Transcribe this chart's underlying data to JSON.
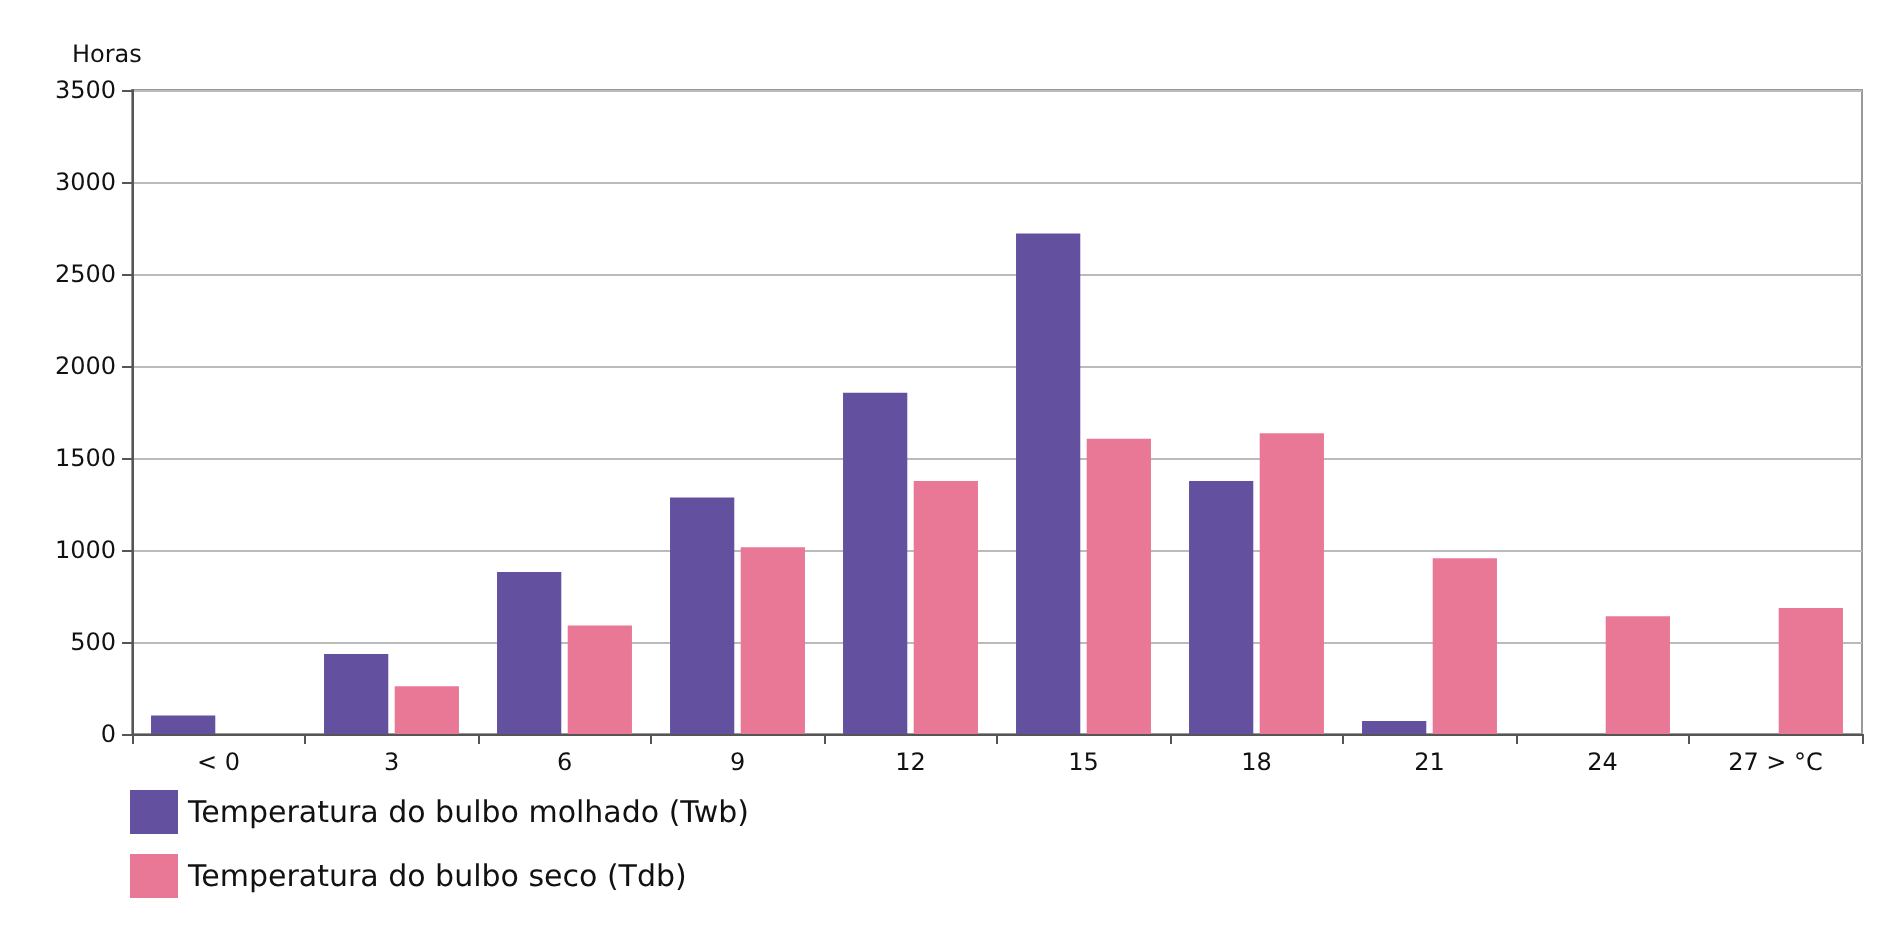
{
  "chart_data": {
    "type": "bar",
    "ylabel": "Horas",
    "categories": [
      "< 0",
      "3",
      "6",
      "9",
      "12",
      "15",
      "18",
      "21",
      "24",
      "27 > °C"
    ],
    "series": [
      {
        "name": "Temperatura do bulbo molhado (Twb)",
        "color": "#6351a0",
        "values": [
          100,
          435,
          880,
          1285,
          1855,
          2720,
          1375,
          70,
          0,
          0
        ]
      },
      {
        "name": "Temperatura do bulbo seco (Tdb)",
        "color": "#e87896",
        "values": [
          0,
          260,
          590,
          1015,
          1375,
          1605,
          1635,
          955,
          640,
          685
        ]
      }
    ],
    "ylim": [
      0,
      3500
    ],
    "yticks": [
      0,
      500,
      1000,
      1500,
      2000,
      2500,
      3000,
      3500
    ],
    "grid": "y",
    "legend": "bottom left"
  }
}
